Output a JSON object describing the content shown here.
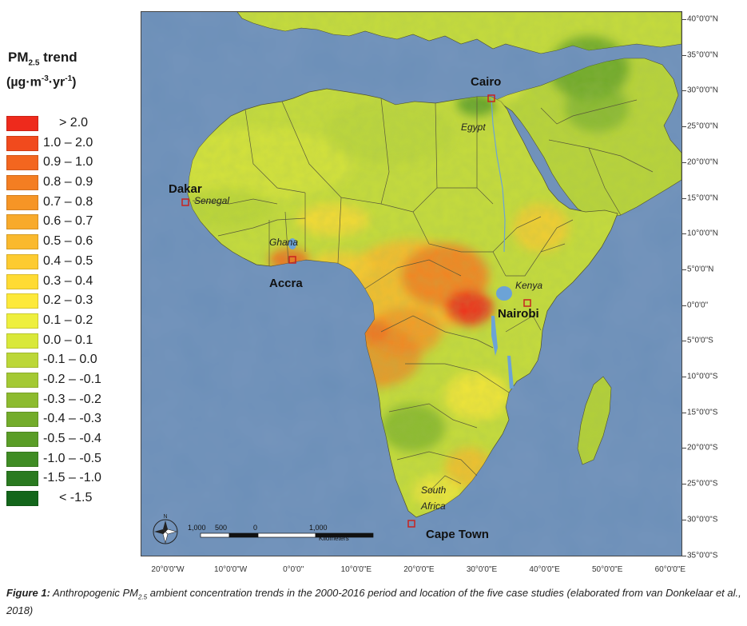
{
  "legend": {
    "title_main": "PM",
    "title_sub": "2.5",
    "title_rest": " trend",
    "unit_prefix": "(µg·m",
    "unit_exp1": "-3",
    "unit_mid": "·yr",
    "unit_exp2": "-1",
    "unit_suffix": ")",
    "items": [
      {
        "label": "> 2.0",
        "color": "#ee2a1c"
      },
      {
        "label": "1.0 – 2.0",
        "color": "#f14a1d"
      },
      {
        "label": "0.9 – 1.0",
        "color": "#f3661f"
      },
      {
        "label": "0.8 – 0.9",
        "color": "#f47e22"
      },
      {
        "label": "0.7 – 0.8",
        "color": "#f69526"
      },
      {
        "label": "0.6 – 0.7",
        "color": "#f8aa2b"
      },
      {
        "label": "0.5 – 0.6",
        "color": "#fab92d"
      },
      {
        "label": "0.4 – 0.5",
        "color": "#fdcb30"
      },
      {
        "label": "0.3 – 0.4",
        "color": "#ffdb33"
      },
      {
        "label": "0.2 – 0.3",
        "color": "#fde93a"
      },
      {
        "label": "0.1 – 0.2",
        "color": "#eeef3e"
      },
      {
        "label": "0.0 – 0.1",
        "color": "#d9e83a"
      },
      {
        "label": "-0.1 – 0.0",
        "color": "#bcd738"
      },
      {
        "label": "-0.2 – -0.1",
        "color": "#a4c934"
      },
      {
        "label": "-0.3 – -0.2",
        "color": "#8dbb2f"
      },
      {
        "label": "-0.4 – -0.3",
        "color": "#73ac2b"
      },
      {
        "label": "-0.5 – -0.4",
        "color": "#5a9d27"
      },
      {
        "label": "-1.0 – -0.5",
        "color": "#3f8c24"
      },
      {
        "label": "-1.5 – -1.0",
        "color": "#2a7a20"
      },
      {
        "label": "< -1.5",
        "color": "#13661b"
      }
    ]
  },
  "map": {
    "cities": [
      {
        "name": "Cairo",
        "label": "Cairo"
      },
      {
        "name": "Dakar",
        "label": "Dakar"
      },
      {
        "name": "Accra",
        "label": "Accra"
      },
      {
        "name": "Nairobi",
        "label": "Nairobi"
      },
      {
        "name": "Cape Town",
        "label": "Cape Town"
      }
    ],
    "countries": [
      "Egypt",
      "Senegal",
      "Ghana",
      "Kenya",
      "South",
      "Africa"
    ],
    "scale_ticks": [
      "1,000",
      "500",
      "0",
      "1,000"
    ],
    "scale_unit": "Kilometers",
    "compass_label": "N",
    "latitudes": [
      "40°0'0\"N",
      "35°0'0\"N",
      "30°0'0\"N",
      "25°0'0\"N",
      "20°0'0\"N",
      "15°0'0\"N",
      "10°0'0\"N",
      "5°0'0\"N",
      "0°0'0\"",
      "5°0'0\"S",
      "10°0'0\"S",
      "15°0'0\"S",
      "20°0'0\"S",
      "25°0'0\"S",
      "30°0'0\"S",
      "35°0'0\"S"
    ],
    "longitudes": [
      "20°0'0\"W",
      "10°0'0\"W",
      "0°0'0\"",
      "10°0'0\"E",
      "20°0'0\"E",
      "30°0'0\"E",
      "40°0'0\"E",
      "50°0'0\"E",
      "60°0'0\"E"
    ],
    "colors": {
      "ocean": "#6b8fb8",
      "land_base": "#c6dc3c",
      "lake": "#6ca3d6",
      "border": "#5a5a3a",
      "marker": "#c8231f"
    }
  },
  "caption": {
    "label": "Figure 1:",
    "text_before": " Anthropogenic PM",
    "text_sub": "2.5",
    "text_after": " ambient concentration trends in the 2000-2016 period and location of the five case studies (elaborated from van Donkelaar et al., 2018)"
  }
}
